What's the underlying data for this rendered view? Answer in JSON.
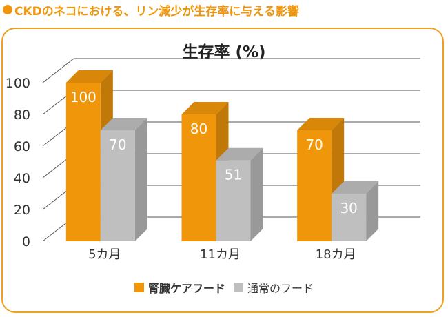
{
  "heading": "CKDのネコにおける、リン減少が生存率に与える影響",
  "chart_data": {
    "type": "bar",
    "title": "生存率 (%)",
    "categories": [
      "5カ月",
      "11カ月",
      "18カ月"
    ],
    "series": [
      {
        "name": "腎臓ケアフード",
        "values": [
          100,
          80,
          70
        ],
        "color": "#f0960a"
      },
      {
        "name": "通常のフード",
        "values": [
          70,
          51,
          30
        ],
        "color": "#bfbfbf"
      }
    ],
    "yticks": [
      "0",
      "20",
      "40",
      "60",
      "80",
      "100"
    ],
    "ylim": [
      0,
      100
    ],
    "grid": true,
    "legend_position": "bottom"
  }
}
